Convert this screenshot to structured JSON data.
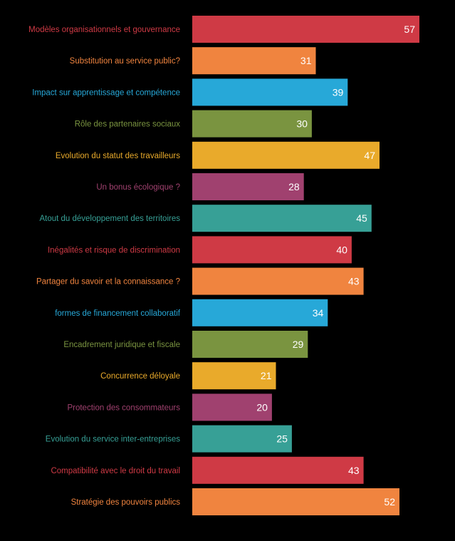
{
  "chart_data": {
    "type": "bar",
    "orientation": "horizontal",
    "title": "",
    "xlabel": "",
    "ylabel": "",
    "grid": false,
    "xlim": [
      0,
      57
    ],
    "categories": [
      "Modèles organisationnels et gouvernance",
      "Substitution au service public?",
      "Impact sur apprentissage et compétence",
      "Rôle des partenaires sociaux",
      "Evolution du statut des travailleurs",
      "Un bonus écologique ?",
      "Atout du développement des territoires",
      "Inégalités et risque de discrimination",
      "Partager du savoir et la connaissance ?",
      "formes de financement collaboratif",
      "Encadrement  juridique et fiscale",
      "Concurrence déloyale",
      "Protection des consommateurs",
      "Evolution du service inter-entreprises",
      "Compatibilité avec le droit du travail",
      "Stratégie des pouvoirs publics"
    ],
    "values": [
      57,
      31,
      39,
      30,
      47,
      28,
      45,
      40,
      43,
      34,
      29,
      21,
      20,
      25,
      43,
      52
    ],
    "colors": [
      "#cf3a45",
      "#f0843f",
      "#27a8d8",
      "#7a9440",
      "#e9aa2b",
      "#a0416f",
      "#37a096",
      "#cf3a45",
      "#f0843f",
      "#27a8d8",
      "#7a9440",
      "#e9aa2b",
      "#a0416f",
      "#37a096",
      "#cf3a45",
      "#f0843f"
    ],
    "value_label_color": "#ffffff",
    "background": "#000000"
  }
}
